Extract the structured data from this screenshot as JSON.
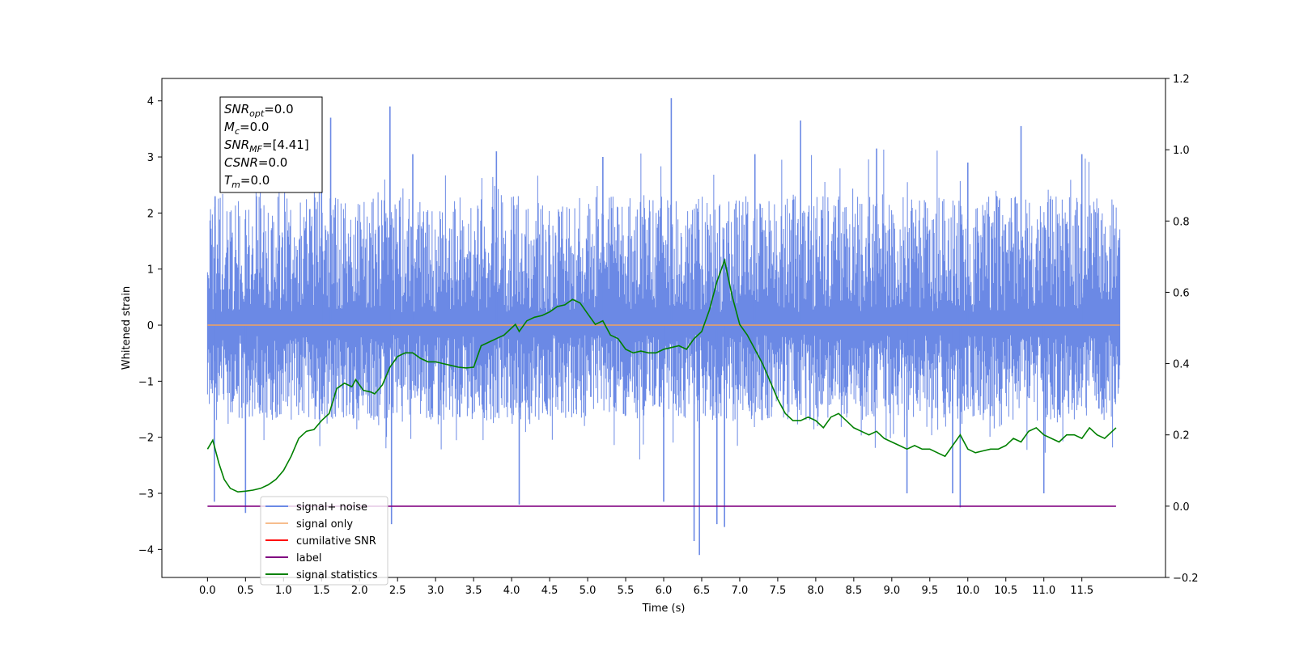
{
  "chart_data": {
    "type": "line",
    "xlabel": "Time (s)",
    "ylabel": "Whitened strain",
    "xlim": [
      -0.6,
      12.6
    ],
    "ylim": [
      -4.5,
      4.4
    ],
    "y2lim": [
      -0.2,
      1.2
    ],
    "xticks": [
      "0.0",
      "0.5",
      "1.0",
      "1.5",
      "2.0",
      "2.5",
      "3.0",
      "3.5",
      "4.0",
      "4.5",
      "5.0",
      "5.5",
      "6.0",
      "6.5",
      "7.0",
      "7.5",
      "8.0",
      "8.5",
      "9.0",
      "9.5",
      "10.0",
      "10.5",
      "11.0",
      "11.5"
    ],
    "yticks": [
      "4",
      "3",
      "2",
      "1",
      "0",
      "−1",
      "−2",
      "−3",
      "−4"
    ],
    "y2ticks": [
      "1.2",
      "1.0",
      "0.8",
      "0.6",
      "0.4",
      "0.2",
      "0.0",
      "−0.2"
    ],
    "grid": false,
    "legend_position": "lower-left",
    "colors": {
      "signal_noise": "#6b89e5",
      "signal_only": "#f5a25d",
      "cumulative_snr": "#ff0000",
      "label": "#800080",
      "signal_statistics": "#008000"
    },
    "annotation": {
      "lines": [
        "=0.0",
        "=0.0",
        "=[4.41]",
        "=0.0",
        "=0.0"
      ],
      "names": [
        "SNR",
        "M",
        "SNR",
        "CSNR",
        "T"
      ],
      "subscripts": [
        "opt",
        "c",
        "MF",
        "",
        "m"
      ]
    },
    "series": [
      {
        "name": "signal+ noise",
        "axis": "left",
        "t_range": [
          0.0,
          12.0
        ],
        "typical_range": [
          -1.7,
          2.3
        ],
        "spikes": [
          [
            0.1,
            2.3
          ],
          [
            0.09,
            -3.15
          ],
          [
            0.5,
            -3.35
          ],
          [
            1.5,
            3.6
          ],
          [
            1.62,
            3.7
          ],
          [
            2.4,
            3.9
          ],
          [
            2.42,
            -3.55
          ],
          [
            2.7,
            3.05
          ],
          [
            3.8,
            3.1
          ],
          [
            4.1,
            -3.2
          ],
          [
            5.2,
            3.0
          ],
          [
            6.1,
            4.05
          ],
          [
            6.0,
            -3.15
          ],
          [
            6.4,
            -3.85
          ],
          [
            6.47,
            -4.1
          ],
          [
            6.7,
            -3.55
          ],
          [
            6.8,
            -3.6
          ],
          [
            7.2,
            3.05
          ],
          [
            7.8,
            3.65
          ],
          [
            8.8,
            3.15
          ],
          [
            9.2,
            -3.0
          ],
          [
            9.8,
            -3.0
          ],
          [
            9.9,
            -3.25
          ],
          [
            10.0,
            2.9
          ],
          [
            10.7,
            3.55
          ],
          [
            11.5,
            3.05
          ],
          [
            11.0,
            -3.0
          ]
        ]
      },
      {
        "name": "signal only",
        "axis": "left",
        "x": [
          0.0,
          12.0
        ],
        "y": [
          0.0,
          0.0
        ]
      },
      {
        "name": "cumilative SNR",
        "axis": "left",
        "x": [],
        "y": []
      },
      {
        "name": "label",
        "axis": "right",
        "x": [
          0.0,
          11.95
        ],
        "y": [
          0.0,
          0.0
        ]
      },
      {
        "name": "signal statistics",
        "axis": "right",
        "x": [
          0.0,
          0.07,
          0.15,
          0.22,
          0.3,
          0.4,
          0.5,
          0.6,
          0.7,
          0.8,
          0.9,
          1.0,
          1.1,
          1.2,
          1.3,
          1.4,
          1.5,
          1.6,
          1.7,
          1.8,
          1.9,
          1.95,
          2.05,
          2.15,
          2.2,
          2.3,
          2.4,
          2.5,
          2.6,
          2.7,
          2.8,
          2.9,
          3.0,
          3.1,
          3.2,
          3.3,
          3.4,
          3.5,
          3.6,
          3.7,
          3.8,
          3.9,
          4.0,
          4.05,
          4.1,
          4.2,
          4.3,
          4.4,
          4.5,
          4.6,
          4.7,
          4.8,
          4.9,
          5.0,
          5.1,
          5.2,
          5.3,
          5.4,
          5.5,
          5.6,
          5.7,
          5.8,
          5.9,
          6.0,
          6.1,
          6.2,
          6.3,
          6.4,
          6.5,
          6.6,
          6.7,
          6.8,
          6.9,
          7.0,
          7.1,
          7.2,
          7.3,
          7.4,
          7.5,
          7.6,
          7.7,
          7.8,
          7.9,
          8.0,
          8.1,
          8.2,
          8.3,
          8.4,
          8.5,
          8.6,
          8.7,
          8.8,
          8.9,
          9.0,
          9.1,
          9.2,
          9.3,
          9.4,
          9.5,
          9.6,
          9.7,
          9.8,
          9.9,
          10.0,
          10.1,
          10.2,
          10.3,
          10.4,
          10.5,
          10.6,
          10.7,
          10.8,
          10.9,
          11.0,
          11.1,
          11.2,
          11.3,
          11.4,
          11.5,
          11.6,
          11.7,
          11.8,
          11.95
        ],
        "y": [
          0.16,
          0.185,
          0.12,
          0.075,
          0.05,
          0.04,
          0.042,
          0.045,
          0.05,
          0.06,
          0.075,
          0.1,
          0.14,
          0.19,
          0.21,
          0.215,
          0.24,
          0.26,
          0.33,
          0.345,
          0.335,
          0.355,
          0.325,
          0.32,
          0.315,
          0.34,
          0.39,
          0.42,
          0.43,
          0.43,
          0.415,
          0.405,
          0.405,
          0.4,
          0.395,
          0.39,
          0.388,
          0.39,
          0.45,
          0.46,
          0.47,
          0.48,
          0.5,
          0.51,
          0.49,
          0.52,
          0.53,
          0.535,
          0.545,
          0.56,
          0.565,
          0.58,
          0.57,
          0.54,
          0.51,
          0.52,
          0.48,
          0.47,
          0.44,
          0.43,
          0.435,
          0.43,
          0.43,
          0.44,
          0.445,
          0.45,
          0.44,
          0.47,
          0.49,
          0.55,
          0.63,
          0.69,
          0.59,
          0.51,
          0.48,
          0.44,
          0.4,
          0.35,
          0.3,
          0.26,
          0.24,
          0.24,
          0.25,
          0.24,
          0.22,
          0.25,
          0.26,
          0.24,
          0.22,
          0.21,
          0.2,
          0.21,
          0.19,
          0.18,
          0.17,
          0.16,
          0.17,
          0.16,
          0.16,
          0.15,
          0.14,
          0.17,
          0.2,
          0.16,
          0.15,
          0.155,
          0.16,
          0.16,
          0.17,
          0.19,
          0.18,
          0.21,
          0.22,
          0.2,
          0.19,
          0.18,
          0.2,
          0.2,
          0.19,
          0.22,
          0.2,
          0.19,
          0.22
        ]
      }
    ]
  }
}
